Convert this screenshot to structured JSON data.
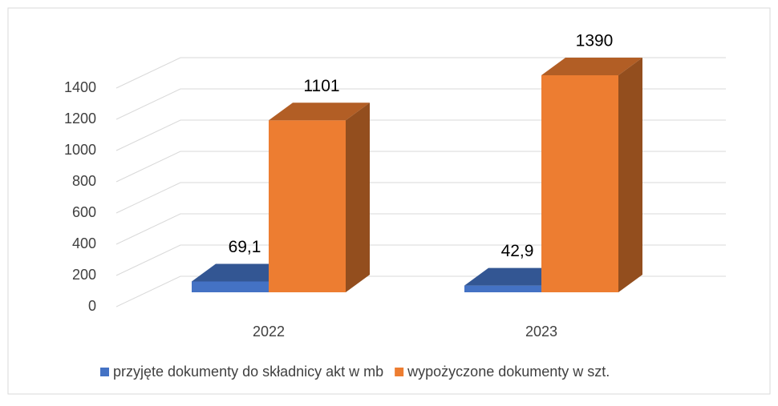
{
  "chart_data": {
    "type": "bar3d",
    "categories": [
      "2022",
      "2023"
    ],
    "series": [
      {
        "name": "przyjęte dokumenty do składnicy akt w mb",
        "color": "#4472c4",
        "values": [
          69.1,
          42.9
        ],
        "value_labels": [
          "69,1",
          "42,9"
        ]
      },
      {
        "name": "wypożyczone dokumenty w szt.",
        "color": "#ed7d31",
        "values": [
          1101,
          1390
        ]
      }
    ],
    "ylim": [
      0,
      1400
    ],
    "yticks": [
      0,
      200,
      400,
      600,
      800,
      1000,
      1200,
      1400
    ],
    "grid": true,
    "legend": "bottom"
  }
}
